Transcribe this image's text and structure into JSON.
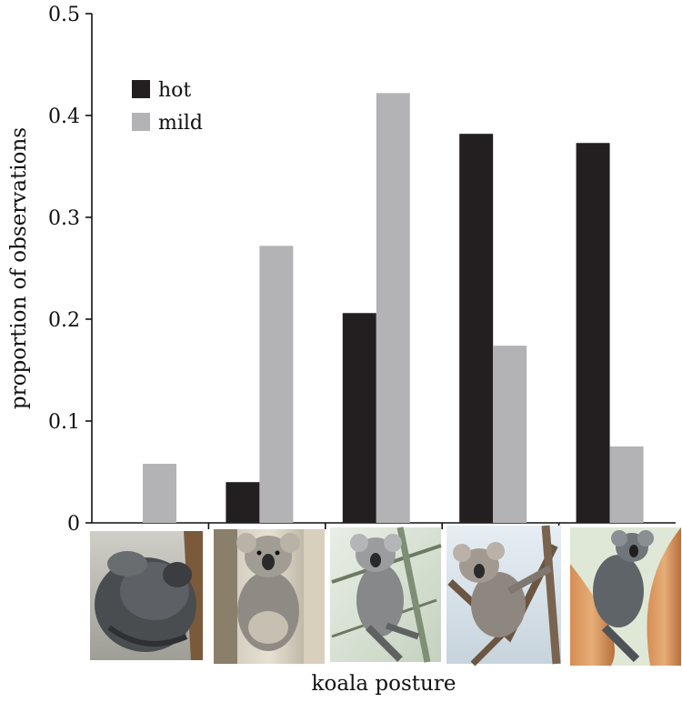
{
  "chart_data": {
    "type": "bar",
    "categories": [
      "",
      "",
      "",
      "",
      ""
    ],
    "series": [
      {
        "name": "hot",
        "color": "#231f20",
        "values": [
          0,
          0.04,
          0.206,
          0.382,
          0.373
        ]
      },
      {
        "name": "mild",
        "color": "#b3b3b5",
        "values": [
          0.058,
          0.272,
          0.422,
          0.174,
          0.075
        ]
      }
    ],
    "title": "",
    "xlabel": "koala posture",
    "ylabel": "proportion of observations",
    "ylim": [
      0,
      0.5
    ],
    "yticks": [
      "0",
      "0.1",
      "0.2",
      "0.3",
      "0.4",
      "0.5"
    ],
    "legend": "top-left",
    "grid": false,
    "category_images": [
      {
        "icon": "koala-curled-ball-photo"
      },
      {
        "icon": "koala-sitting-upright-photo"
      },
      {
        "icon": "koala-sitting-between-branches-photo"
      },
      {
        "icon": "koala-sprawled-in-fork-photo"
      },
      {
        "icon": "koala-stretched-on-trunk-photo"
      }
    ]
  }
}
